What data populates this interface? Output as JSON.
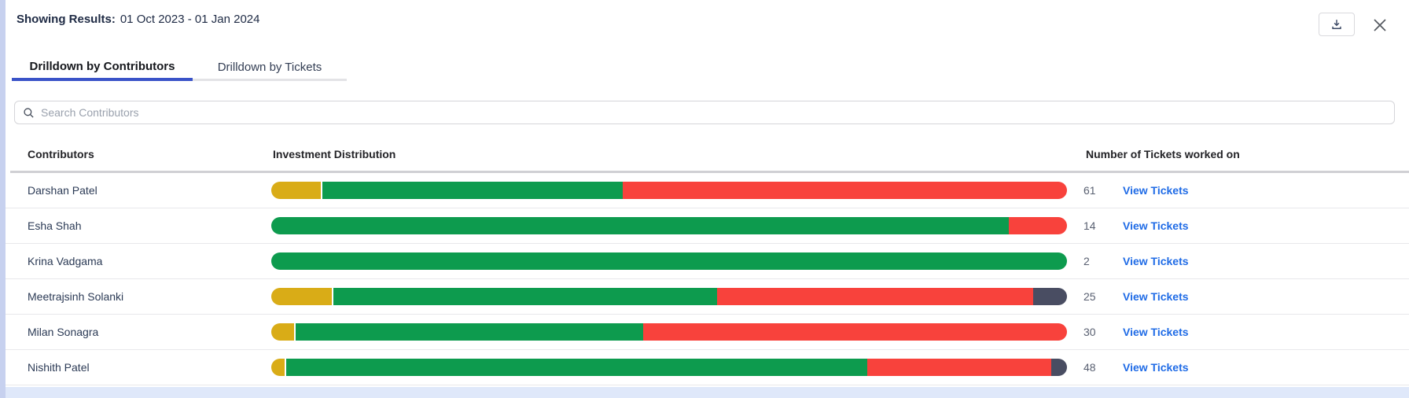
{
  "header": {
    "results_label": "Showing Results:",
    "date_range": "01 Oct 2023 - 01 Jan 2024"
  },
  "tabs": [
    {
      "label": "Drilldown by Contributors",
      "active": true
    },
    {
      "label": "Drilldown by Tickets",
      "active": false
    }
  ],
  "search": {
    "placeholder": "Search Contributors",
    "icon": "search-icon"
  },
  "toolbar": {
    "icons": [
      "download-icon",
      "close-icon"
    ]
  },
  "table": {
    "columns": [
      "Contributors",
      "Investment Distribution",
      "Number of Tickets worked on"
    ],
    "link_label": "View Tickets",
    "rows": [
      {
        "name": "Darshan Patel",
        "tickets": "61",
        "segments": [
          {
            "color": "yellow",
            "pct": 6.4
          },
          {
            "color": "green",
            "pct": 37.8
          },
          {
            "color": "red",
            "pct": 55.8
          }
        ]
      },
      {
        "name": "Esha Shah",
        "tickets": "14",
        "segments": [
          {
            "color": "green",
            "pct": 92.7
          },
          {
            "color": "red",
            "pct": 7.3
          }
        ]
      },
      {
        "name": "Krina Vadgama",
        "tickets": "2",
        "segments": [
          {
            "color": "green",
            "pct": 100
          }
        ]
      },
      {
        "name": "Meetrajsinh Solanki",
        "tickets": "25",
        "segments": [
          {
            "color": "yellow",
            "pct": 7.8
          },
          {
            "color": "green",
            "pct": 48.2
          },
          {
            "color": "red",
            "pct": 39.8
          },
          {
            "color": "dark",
            "pct": 4.2
          }
        ]
      },
      {
        "name": "Milan Sonagra",
        "tickets": "30",
        "segments": [
          {
            "color": "yellow",
            "pct": 3.1
          },
          {
            "color": "green",
            "pct": 43.6
          },
          {
            "color": "red",
            "pct": 53.3
          }
        ]
      },
      {
        "name": "Nishith Patel",
        "tickets": "48",
        "segments": [
          {
            "color": "yellow",
            "pct": 1.9
          },
          {
            "color": "green",
            "pct": 73.0
          },
          {
            "color": "red",
            "pct": 23.1
          },
          {
            "color": "dark",
            "pct": 2.0
          }
        ]
      }
    ]
  },
  "colors": {
    "yellow": "#D9AC17",
    "green": "#0D9B4E",
    "red": "#F8423C",
    "dark": "#494D62",
    "link": "#1F6BE6",
    "tab_active_underline": "#3A53C8"
  }
}
